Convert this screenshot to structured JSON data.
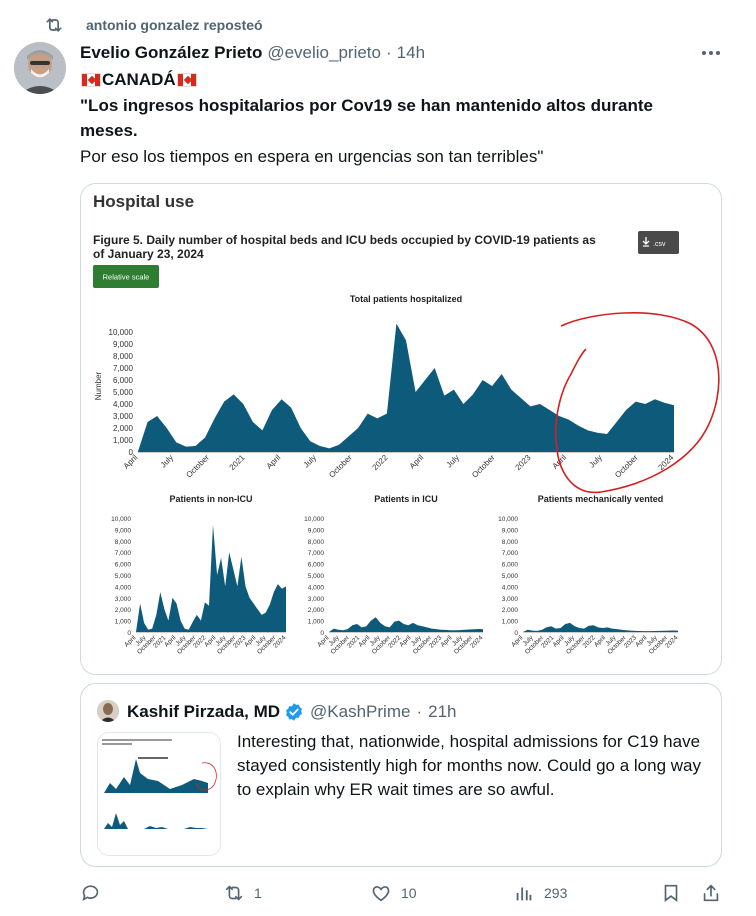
{
  "repost": {
    "text": "antonio gonzalez reposteó",
    "icon": "repost-icon"
  },
  "tweet": {
    "author_name": "Evelio González Prieto",
    "handle": "@evelio_prieto",
    "separator": "·",
    "time": "14h",
    "line1": "CANADÁ",
    "line2": "\"Los ingresos hospitalarios por Cov19 se han mantenido altos durante",
    "line3": "meses.",
    "line4": "Por eso los tiempos en espera en urgencias son tan terribles\""
  },
  "figure": {
    "header": "Hospital use",
    "caption_line1": "Figure 5. Daily number of hospital beds and ICU beds occupied by COVID-19 patients as",
    "caption_line2": "of January 23, 2024",
    "csv_label": ".csv",
    "scale_button": "Relative scale",
    "accent_color": "#0e5a7a",
    "annotation_color": "#d42020"
  },
  "chart_data": [
    {
      "type": "area",
      "title": "Total patients hospitalized",
      "ylabel": "Number",
      "ylim": [
        0,
        11000
      ],
      "yticks": [
        "0",
        "1,000",
        "2,000",
        "3,000",
        "4,000",
        "5,000",
        "6,000",
        "7,000",
        "8,000",
        "9,000",
        "10,000"
      ],
      "xticks": [
        "April",
        "July",
        "October",
        "2021",
        "April",
        "July",
        "October",
        "2022",
        "April",
        "July",
        "October",
        "2023",
        "April",
        "July",
        "October",
        "2024"
      ],
      "series": [
        {
          "values": [
            50,
            2500,
            3000,
            2000,
            800,
            450,
            500,
            1200,
            2800,
            4200,
            4800,
            4000,
            2500,
            1800,
            3500,
            4400,
            3700,
            2000,
            900,
            500,
            300,
            600,
            1300,
            2000,
            3200,
            2800,
            3200,
            10700,
            9300,
            5000,
            6000,
            7000,
            4700,
            5200,
            4000,
            4800,
            6000,
            5500,
            6500,
            5200,
            4500,
            3800,
            4000,
            3500,
            3000,
            2700,
            2200,
            1800,
            1600,
            1500,
            2500,
            3500,
            4200,
            4000,
            4400,
            4100,
            3900
          ]
        }
      ]
    },
    {
      "type": "area",
      "title": "Patients in non-ICU",
      "ylim": [
        0,
        10000
      ],
      "yticks": [
        "0",
        "1,000",
        "2,000",
        "3,000",
        "4,000",
        "5,000",
        "6,000",
        "7,000",
        "8,000",
        "9,000",
        "10,000"
      ],
      "xticks": [
        "April",
        "July",
        "October",
        "2021",
        "April",
        "July",
        "October",
        "2022",
        "April",
        "July",
        "October",
        "2023",
        "April",
        "July",
        "October",
        "2024"
      ],
      "series": [
        {
          "values": [
            0,
            2500,
            800,
            200,
            300,
            1500,
            3500,
            2000,
            1000,
            3000,
            2500,
            1000,
            300,
            200,
            900,
            1500,
            1000,
            2600,
            2300,
            9400,
            5000,
            6500,
            4000,
            7000,
            5500,
            4000,
            6600,
            4000,
            3000,
            2500,
            2000,
            1500,
            1700,
            2400,
            3500,
            4200,
            3800,
            4000
          ]
        }
      ]
    },
    {
      "type": "area",
      "title": "Patients in ICU",
      "ylim": [
        0,
        10000
      ],
      "yticks": [
        "0",
        "1,000",
        "2,000",
        "3,000",
        "4,000",
        "5,000",
        "6,000",
        "7,000",
        "8,000",
        "9,000",
        "10,000"
      ],
      "xticks": [
        "April",
        "July",
        "October",
        "2021",
        "April",
        "July",
        "October",
        "2022",
        "April",
        "July",
        "October",
        "2023",
        "April",
        "July",
        "October",
        "2024"
      ],
      "series": [
        {
          "values": [
            0,
            300,
            200,
            150,
            250,
            600,
            700,
            400,
            500,
            1000,
            1300,
            800,
            500,
            400,
            900,
            1000,
            700,
            600,
            800,
            600,
            500,
            400,
            300,
            250,
            200,
            180,
            160,
            150,
            170,
            200,
            220,
            240,
            260,
            250
          ]
        }
      ]
    },
    {
      "type": "area",
      "title": "Patients mechanically vented",
      "ylim": [
        0,
        10000
      ],
      "yticks": [
        "0",
        "1,000",
        "2,000",
        "3,000",
        "4,000",
        "5,000",
        "6,000",
        "7,000",
        "8,000",
        "9,000",
        "10,000"
      ],
      "xticks": [
        "April",
        "July",
        "October",
        "2021",
        "April",
        "July",
        "October",
        "2022",
        "April",
        "July",
        "October",
        "2023",
        "April",
        "July",
        "October",
        "2024"
      ],
      "series": [
        {
          "values": [
            0,
            200,
            120,
            100,
            180,
            400,
            500,
            300,
            350,
            700,
            800,
            500,
            350,
            300,
            550,
            600,
            400,
            350,
            400,
            300,
            250,
            200,
            150,
            120,
            100,
            90,
            80,
            80,
            90,
            100,
            110,
            120,
            130,
            120
          ]
        }
      ]
    }
  ],
  "quote": {
    "author_name": "Kashif Pirzada, MD",
    "handle": "@KashPrime",
    "separator": "·",
    "time": "21h",
    "text": "Interesting that, nationwide, hospital admissions for C19 have stayed consistently high for months now. Could go a long way to explain why ER wait times are so awful."
  },
  "actions": {
    "reply_count": "",
    "repost_count": "1",
    "like_count": "10",
    "views_count": "293"
  }
}
